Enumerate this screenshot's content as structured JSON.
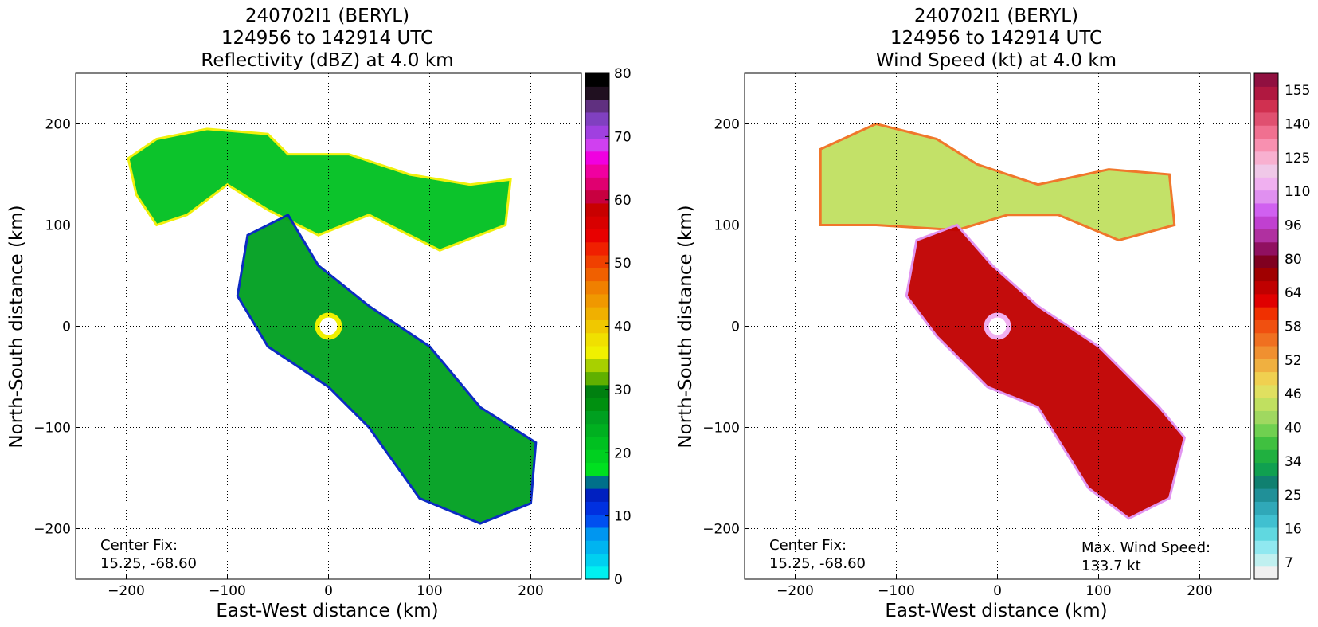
{
  "chart_data": [
    {
      "type": "heatmap",
      "title_lines": [
        "240702I1 (BERYL)",
        "124956 to 142914 UTC",
        "Reflectivity (dBZ) at 4.0 km"
      ],
      "xlabel": "East-West distance (km)",
      "ylabel": "North-South distance (km)",
      "xlim": [
        -250,
        250
      ],
      "ylim": [
        -250,
        250
      ],
      "xticks": [
        -200,
        -100,
        0,
        100,
        200
      ],
      "yticks": [
        -200,
        -100,
        0,
        100,
        200
      ],
      "grid": true,
      "center_fix_label": "Center Fix:",
      "center_fix_value": "15.25, -68.60",
      "colorbar": {
        "min": 0,
        "max": 80,
        "ticks": [
          0,
          10,
          20,
          30,
          40,
          50,
          60,
          70,
          80
        ],
        "colors": [
          "#00f0f0",
          "#00d0f0",
          "#00b4f0",
          "#0096f0",
          "#0050f0",
          "#0030e0",
          "#0020c0",
          "#00708a",
          "#00e020",
          "#00d020",
          "#00c020",
          "#00b020",
          "#00a020",
          "#009010",
          "#008010",
          "#60b000",
          "#a8d000",
          "#f0f000",
          "#f0e000",
          "#f0c800",
          "#f0b000",
          "#f09800",
          "#f08000",
          "#f06000",
          "#f04000",
          "#f02000",
          "#e80000",
          "#d80000",
          "#c80000",
          "#c80040",
          "#e00070",
          "#f000a0",
          "#f000e0",
          "#d040f0",
          "#a040e0",
          "#8040c0",
          "#603080",
          "#201020",
          "#000000"
        ]
      },
      "regions": [
        {
          "name": "outer-band",
          "points": [
            [
              -198,
              166
            ],
            [
              -170,
              185
            ],
            [
              -120,
              195
            ],
            [
              -60,
              190
            ],
            [
              -40,
              170
            ],
            [
              20,
              170
            ],
            [
              80,
              150
            ],
            [
              140,
              140
            ],
            [
              180,
              145
            ],
            [
              175,
              100
            ],
            [
              110,
              75
            ],
            [
              40,
              110
            ],
            [
              -10,
              90
            ],
            [
              -60,
              115
            ],
            [
              -100,
              140
            ],
            [
              -140,
              110
            ],
            [
              -170,
              100
            ],
            [
              -190,
              130
            ]
          ]
        },
        {
          "name": "core-band",
          "points": [
            [
              -80,
              90
            ],
            [
              -40,
              110
            ],
            [
              -10,
              60
            ],
            [
              40,
              20
            ],
            [
              100,
              -20
            ],
            [
              150,
              -80
            ],
            [
              205,
              -115
            ],
            [
              200,
              -175
            ],
            [
              150,
              -195
            ],
            [
              90,
              -170
            ],
            [
              40,
              -100
            ],
            [
              0,
              -60
            ],
            [
              -60,
              -20
            ],
            [
              -90,
              30
            ]
          ]
        }
      ],
      "eye": [
        0,
        0
      ]
    },
    {
      "type": "heatmap",
      "title_lines": [
        "240702I1 (BERYL)",
        "124956 to 142914 UTC",
        "Wind Speed (kt) at 4.0 km"
      ],
      "xlabel": "East-West distance (km)",
      "ylabel": "North-South distance (km)",
      "xlim": [
        -250,
        250
      ],
      "ylim": [
        -250,
        250
      ],
      "xticks": [
        -200,
        -100,
        0,
        100,
        200
      ],
      "yticks": [
        -200,
        -100,
        0,
        100,
        200
      ],
      "grid": true,
      "center_fix_label": "Center Fix:",
      "center_fix_value": "15.25, -68.60",
      "max_wind_label": "Max. Wind Speed:",
      "max_wind_value": "133.7 kt",
      "colorbar": {
        "min": 7,
        "max": 160,
        "tick_labels": [
          "7",
          "16",
          "25",
          "34",
          "40",
          "46",
          "52",
          "58",
          "64",
          "80",
          "96",
          "110",
          "125",
          "140",
          "155"
        ],
        "colors": [
          "#f0f0f0",
          "#c0f0f0",
          "#90e8f0",
          "#60d8e0",
          "#40c0d0",
          "#30a8b8",
          "#209098",
          "#108070",
          "#10a050",
          "#20b040",
          "#40c040",
          "#70d050",
          "#a0d860",
          "#c0e060",
          "#e0e060",
          "#f0d050",
          "#f0b040",
          "#f09030",
          "#f07020",
          "#f05010",
          "#f03000",
          "#e00000",
          "#c00000",
          "#a00000",
          "#800020",
          "#901060",
          "#b030a0",
          "#c040d0",
          "#d060f0",
          "#e090f0",
          "#f0b0f0",
          "#f0c8e8",
          "#f8b0d0",
          "#f890b0",
          "#f07090",
          "#e05070",
          "#d03050",
          "#b01840",
          "#901040"
        ]
      },
      "regions": [
        {
          "name": "outer-band",
          "points": [
            [
              -175,
              175
            ],
            [
              -120,
              200
            ],
            [
              -60,
              185
            ],
            [
              -20,
              160
            ],
            [
              40,
              140
            ],
            [
              110,
              155
            ],
            [
              170,
              150
            ],
            [
              175,
              100
            ],
            [
              120,
              85
            ],
            [
              60,
              110
            ],
            [
              10,
              110
            ],
            [
              -40,
              95
            ],
            [
              -120,
              100
            ],
            [
              -175,
              100
            ]
          ]
        },
        {
          "name": "core-band",
          "points": [
            [
              -80,
              85
            ],
            [
              -40,
              100
            ],
            [
              -5,
              60
            ],
            [
              40,
              20
            ],
            [
              100,
              -20
            ],
            [
              160,
              -80
            ],
            [
              185,
              -110
            ],
            [
              170,
              -170
            ],
            [
              130,
              -190
            ],
            [
              90,
              -160
            ],
            [
              40,
              -80
            ],
            [
              -10,
              -60
            ],
            [
              -60,
              -10
            ],
            [
              -90,
              30
            ]
          ]
        }
      ],
      "eye": [
        0,
        0
      ]
    }
  ]
}
